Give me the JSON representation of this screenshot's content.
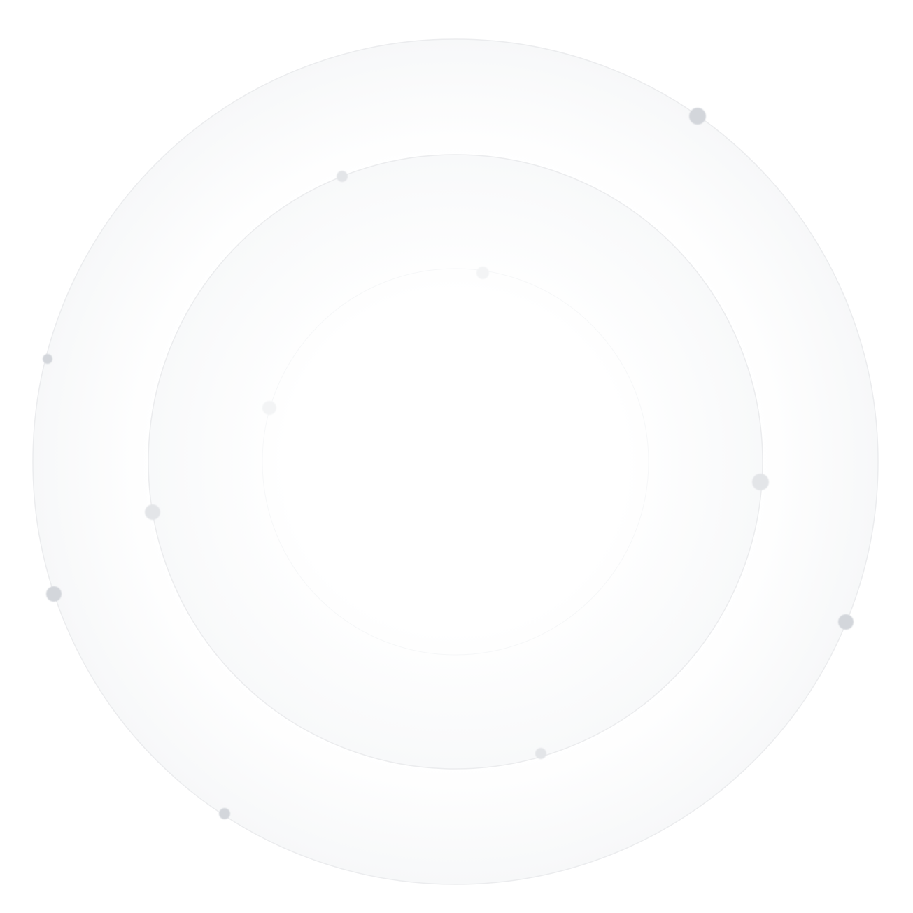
{
  "colors": {
    "background": "#ffffff",
    "ring_stroke": "#ebecee",
    "ring_fill_edge": "#f6f7f8",
    "dot": "#d3d6db",
    "dot_light": "#e3e5e8",
    "dot_faint": "#f3f4f5"
  }
}
